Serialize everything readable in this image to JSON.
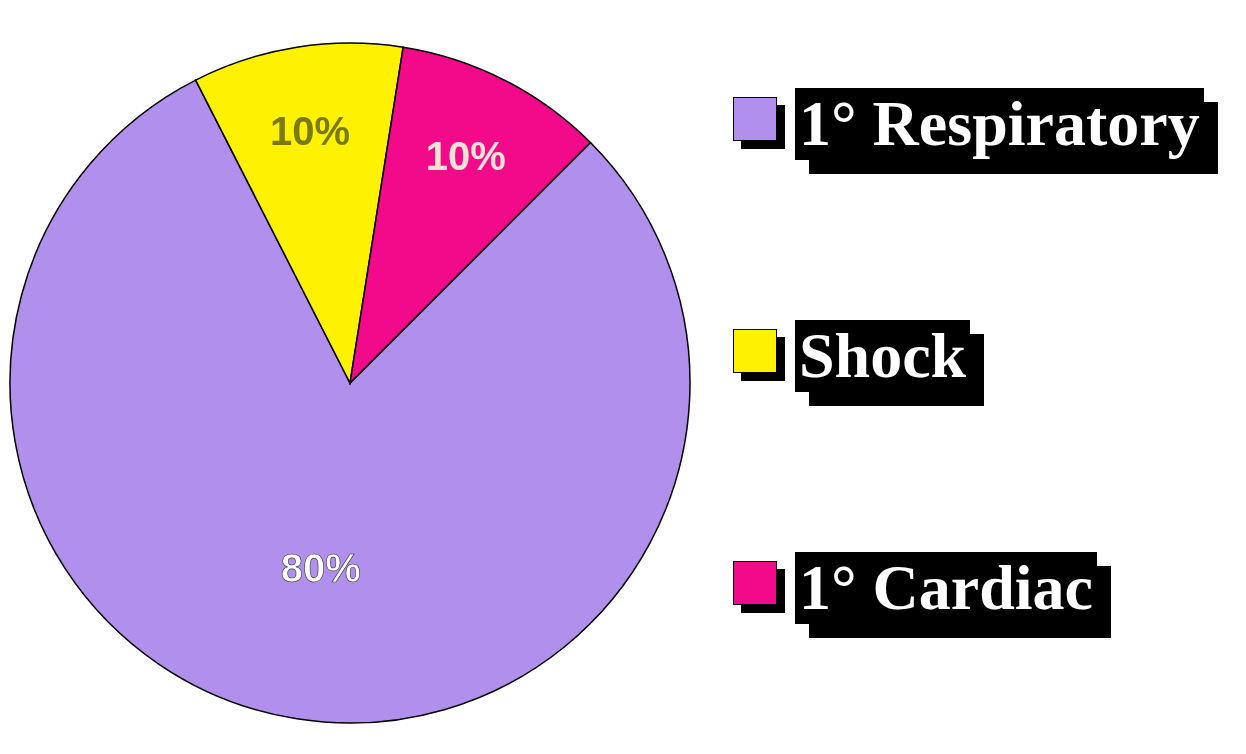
{
  "chart_data": {
    "type": "pie",
    "categories": [
      "1° Respiratory",
      "Shock",
      "1° Cardiac"
    ],
    "values": [
      80,
      10,
      10
    ],
    "colors": [
      "#b18fed",
      "#fff200",
      "#f20a8a"
    ],
    "value_labels": [
      "80%",
      "10%",
      "10%"
    ],
    "legend": "right"
  }
}
